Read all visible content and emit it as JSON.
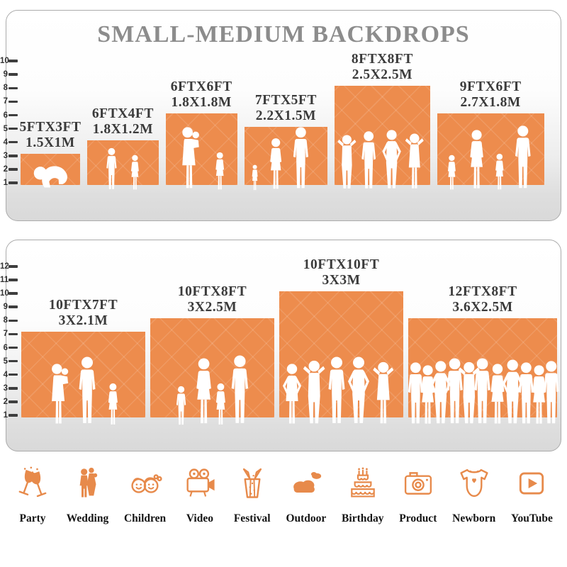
{
  "title": "SMALL-MEDIUM BACKDROPS",
  "colors": {
    "block_orange": "#ED8C4D",
    "title_gray": "#8C8C8C",
    "label_dark": "#3B3B3B",
    "icon_orange": "#E78A4B",
    "tick_dark": "#3E3E3E",
    "panel_border": "#ABABAB"
  },
  "chart_data": [
    {
      "type": "bar",
      "panel": "small-medium",
      "title": "SMALL-MEDIUM BACKDROPS",
      "ylim": [
        1,
        10
      ],
      "yticks": [
        1,
        2,
        3,
        4,
        5,
        6,
        7,
        8,
        9,
        10
      ],
      "unit_primary": "FT",
      "unit_secondary": "M",
      "bars": [
        {
          "size_ft": "5FTX3FT",
          "size_m": "1.5X1M",
          "width_ft": 5,
          "height_ft": 3,
          "figures": [
            [
              "baby",
              0.52,
              44
            ]
          ]
        },
        {
          "size_ft": "6FTX4FT",
          "size_m": "1.8X1.2M",
          "width_ft": 6,
          "height_ft": 4,
          "figures": [
            [
              "child",
              0.34,
              62
            ],
            [
              "girl",
              0.67,
              52
            ]
          ]
        },
        {
          "size_ft": "6FTX6FT",
          "size_m": "1.8X1.8M",
          "width_ft": 6,
          "height_ft": 6,
          "figures": [
            [
              "mother",
              0.33,
              92
            ],
            [
              "girl",
              0.76,
              56
            ]
          ]
        },
        {
          "size_ft": "7FTX5FT",
          "size_m": "2.2X1.5M",
          "width_ft": 7,
          "height_ft": 5,
          "figures": [
            [
              "girl",
              0.13,
              38
            ],
            [
              "woman",
              0.38,
              76
            ],
            [
              "man",
              0.68,
              92
            ]
          ]
        },
        {
          "size_ft": "8FTX8FT",
          "size_m": "2.5X2.5M",
          "width_ft": 8,
          "height_ft": 8,
          "figures": [
            [
              "man-up",
              0.13,
              82
            ],
            [
              "man",
              0.36,
              86
            ],
            [
              "man-hips",
              0.6,
              88
            ],
            [
              "woman-up",
              0.84,
              84
            ]
          ]
        },
        {
          "size_ft": "9FTX6FT",
          "size_m": "2.7X1.8M",
          "width_ft": 9,
          "height_ft": 6,
          "figures": [
            [
              "girl",
              0.14,
              52
            ],
            [
              "woman",
              0.37,
              88
            ],
            [
              "girl",
              0.585,
              54
            ],
            [
              "man",
              0.8,
              94
            ]
          ]
        }
      ]
    },
    {
      "type": "bar",
      "panel": "medium-large",
      "title": "",
      "ylim": [
        1,
        12
      ],
      "yticks": [
        1,
        2,
        3,
        4,
        5,
        6,
        7,
        8,
        9,
        10,
        11,
        12
      ],
      "unit_primary": "FT",
      "unit_secondary": "M",
      "bars": [
        {
          "size_ft": "10FTX7FT",
          "size_m": "3X2.1M",
          "width_ft": 10,
          "height_ft": 7,
          "figures": [
            [
              "mother",
              0.3,
              90
            ],
            [
              "man",
              0.53,
              100
            ],
            [
              "girl",
              0.74,
              62
            ]
          ]
        },
        {
          "size_ft": "10FTX8FT",
          "size_m": "3X2.5M",
          "width_ft": 10,
          "height_ft": 8,
          "figures": [
            [
              "child",
              0.25,
              58
            ],
            [
              "woman",
              0.43,
              98
            ],
            [
              "girl",
              0.57,
              62
            ],
            [
              "man",
              0.72,
              102
            ]
          ]
        },
        {
          "size_ft": "10FTX10FT",
          "size_m": "3X3M",
          "width_ft": 10,
          "height_ft": 10,
          "figures": [
            [
              "woman-hips",
              0.1,
              90
            ],
            [
              "man-up",
              0.28,
              96
            ],
            [
              "man",
              0.46,
              100
            ],
            [
              "man-hips",
              0.64,
              100
            ],
            [
              "woman-up",
              0.84,
              94
            ]
          ]
        },
        {
          "size_ft": "12FTX8FT",
          "size_m": "3.6X2.5M",
          "width_ft": 12,
          "height_ft": 8,
          "figures": [
            [
              "man",
              0.05,
              92
            ],
            [
              "woman",
              0.13,
              88
            ],
            [
              "man-hips",
              0.22,
              94
            ],
            [
              "man",
              0.31,
              98
            ],
            [
              "man-up",
              0.41,
              94
            ],
            [
              "man",
              0.5,
              98
            ],
            [
              "woman",
              0.6,
              90
            ],
            [
              "man-hips",
              0.7,
              96
            ],
            [
              "man",
              0.79,
              92
            ],
            [
              "woman",
              0.88,
              88
            ],
            [
              "man",
              0.96,
              94
            ]
          ]
        }
      ]
    }
  ],
  "categories": [
    {
      "label": "Party",
      "icon": "party-icon"
    },
    {
      "label": "Wedding",
      "icon": "wedding-icon"
    },
    {
      "label": "Children",
      "icon": "children-icon"
    },
    {
      "label": "Video",
      "icon": "video-icon"
    },
    {
      "label": "Festival",
      "icon": "festival-icon"
    },
    {
      "label": "Outdoor",
      "icon": "outdoor-icon"
    },
    {
      "label": "Birthday",
      "icon": "birthday-icon"
    },
    {
      "label": "Product",
      "icon": "product-icon"
    },
    {
      "label": "Newborn",
      "icon": "newborn-icon"
    },
    {
      "label": "YouTube",
      "icon": "youtube-icon"
    }
  ]
}
